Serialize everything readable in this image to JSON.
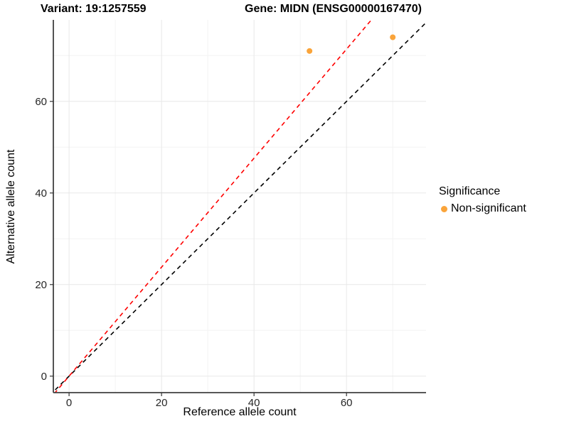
{
  "header": {
    "variant_title": "Variant: 19:1257559",
    "gene_title": "Gene: MIDN (ENSG00000167470)"
  },
  "chart_data": {
    "type": "scatter",
    "xlabel": "Reference allele count",
    "ylabel": "Alternative allele count",
    "xlim": [
      -3.4,
      77.2
    ],
    "ylim": [
      -3.6,
      77.8
    ],
    "x_ticks": [
      0,
      20,
      40,
      60
    ],
    "y_ticks": [
      0,
      20,
      40,
      60
    ],
    "x_minor": [
      10,
      30,
      50,
      70
    ],
    "y_minor": [
      10,
      30,
      50,
      70
    ],
    "grid": true,
    "legend_position": "right",
    "points": [
      {
        "x": 52,
        "y": 71,
        "series": "Non-significant"
      },
      {
        "x": 70,
        "y": 74,
        "series": "Non-significant"
      }
    ],
    "lines": [
      {
        "name": "identity-line",
        "slope": 1.0,
        "intercept": 0,
        "color": "#000000",
        "style": "dashed"
      },
      {
        "name": "allelic-ratio-line",
        "slope": 1.19,
        "intercept": 0,
        "color": "#FF0000",
        "style": "dashed"
      }
    ],
    "point_color": "#FAA43A",
    "colors": {
      "major_grid": "#e8e8e8",
      "minor_grid": "#f3f3f3",
      "axis_line": "#404040"
    }
  },
  "legend": {
    "title": "Significance",
    "items": [
      {
        "label": "Non-significant",
        "color": "#FAA43A"
      }
    ]
  }
}
